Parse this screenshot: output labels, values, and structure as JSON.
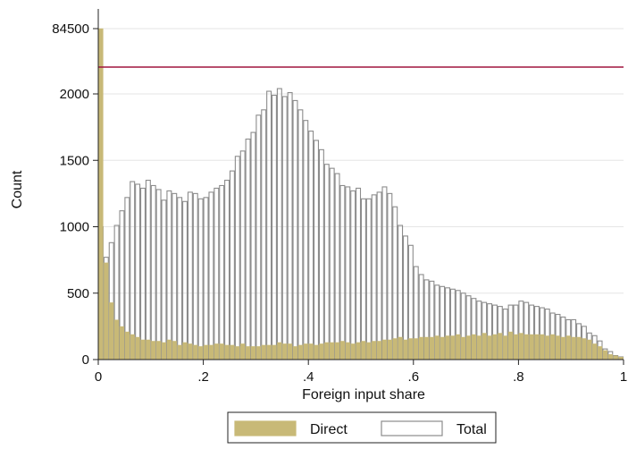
{
  "chart_data": {
    "type": "bar",
    "subtype": "overlaid-histogram",
    "xlabel": "Foreign input share",
    "ylabel": "Count",
    "xlim": [
      0,
      1
    ],
    "x_ticks": [
      {
        "value": 0,
        "label": "0"
      },
      {
        "value": 0.2,
        "label": ".2"
      },
      {
        "value": 0.4,
        "label": ".4"
      },
      {
        "value": 0.6,
        "label": ".6"
      },
      {
        "value": 0.8,
        "label": ".8"
      },
      {
        "value": 1,
        "label": "1"
      }
    ],
    "y_ticks": [
      {
        "value": 0,
        "label": "0"
      },
      {
        "value": 500,
        "label": "500"
      },
      {
        "value": 1000,
        "label": "1000"
      },
      {
        "value": 1500,
        "label": "1500"
      },
      {
        "value": 2000,
        "label": "2000"
      },
      {
        "value": 84500,
        "label": "84500"
      }
    ],
    "axis_break": {
      "line_value": 2200,
      "line_color": "#a0153e"
    },
    "grid": "horizontal",
    "legend_position": "bottom",
    "bin_width": 0.01,
    "series": [
      {
        "name": "Total",
        "style": "outline",
        "color": "#8c8c8c",
        "bin_starts": [
          0.0,
          0.01,
          0.02,
          0.03,
          0.04,
          0.05,
          0.06,
          0.07,
          0.08,
          0.09,
          0.1,
          0.11,
          0.12,
          0.13,
          0.14,
          0.15,
          0.16,
          0.17,
          0.18,
          0.19,
          0.2,
          0.21,
          0.22,
          0.23,
          0.24,
          0.25,
          0.26,
          0.27,
          0.28,
          0.29,
          0.3,
          0.31,
          0.32,
          0.33,
          0.34,
          0.35,
          0.36,
          0.37,
          0.38,
          0.39,
          0.4,
          0.41,
          0.42,
          0.43,
          0.44,
          0.45,
          0.46,
          0.47,
          0.48,
          0.49,
          0.5,
          0.51,
          0.52,
          0.53,
          0.54,
          0.55,
          0.56,
          0.57,
          0.58,
          0.59,
          0.6,
          0.61,
          0.62,
          0.63,
          0.64,
          0.65,
          0.66,
          0.67,
          0.68,
          0.69,
          0.7,
          0.71,
          0.72,
          0.73,
          0.74,
          0.75,
          0.76,
          0.77,
          0.78,
          0.79,
          0.8,
          0.81,
          0.82,
          0.83,
          0.84,
          0.85,
          0.86,
          0.87,
          0.88,
          0.89,
          0.9,
          0.91,
          0.92,
          0.93,
          0.94,
          0.95,
          0.96,
          0.97,
          0.98,
          0.99
        ],
        "values": [
          1000,
          770,
          880,
          1010,
          1120,
          1220,
          1340,
          1320,
          1290,
          1350,
          1310,
          1280,
          1200,
          1270,
          1250,
          1220,
          1190,
          1260,
          1250,
          1210,
          1220,
          1260,
          1290,
          1310,
          1350,
          1420,
          1530,
          1570,
          1660,
          1710,
          1840,
          1880,
          2020,
          1990,
          2040,
          1980,
          2010,
          1950,
          1880,
          1800,
          1720,
          1650,
          1580,
          1470,
          1440,
          1400,
          1310,
          1300,
          1270,
          1290,
          1210,
          1210,
          1240,
          1260,
          1300,
          1250,
          1150,
          1010,
          930,
          860,
          700,
          640,
          600,
          590,
          560,
          550,
          540,
          530,
          520,
          500,
          480,
          460,
          440,
          430,
          420,
          410,
          400,
          380,
          410,
          410,
          440,
          430,
          410,
          400,
          390,
          380,
          350,
          340,
          320,
          300,
          300,
          270,
          250,
          200,
          180,
          140,
          80,
          60,
          30,
          20
        ]
      },
      {
        "name": "Direct",
        "style": "filled",
        "color": "#c8b977",
        "bin_starts": [
          0.0,
          0.01,
          0.02,
          0.03,
          0.04,
          0.05,
          0.06,
          0.07,
          0.08,
          0.09,
          0.1,
          0.11,
          0.12,
          0.13,
          0.14,
          0.15,
          0.16,
          0.17,
          0.18,
          0.19,
          0.2,
          0.21,
          0.22,
          0.23,
          0.24,
          0.25,
          0.26,
          0.27,
          0.28,
          0.29,
          0.3,
          0.31,
          0.32,
          0.33,
          0.34,
          0.35,
          0.36,
          0.37,
          0.38,
          0.39,
          0.4,
          0.41,
          0.42,
          0.43,
          0.44,
          0.45,
          0.46,
          0.47,
          0.48,
          0.49,
          0.5,
          0.51,
          0.52,
          0.53,
          0.54,
          0.55,
          0.56,
          0.57,
          0.58,
          0.59,
          0.6,
          0.61,
          0.62,
          0.63,
          0.64,
          0.65,
          0.66,
          0.67,
          0.68,
          0.69,
          0.7,
          0.71,
          0.72,
          0.73,
          0.74,
          0.75,
          0.76,
          0.77,
          0.78,
          0.79,
          0.8,
          0.81,
          0.82,
          0.83,
          0.84,
          0.85,
          0.86,
          0.87,
          0.88,
          0.89,
          0.9,
          0.91,
          0.92,
          0.93,
          0.94,
          0.95,
          0.96,
          0.97,
          0.98,
          0.99
        ],
        "values": [
          84900,
          730,
          430,
          300,
          250,
          210,
          190,
          170,
          150,
          150,
          140,
          140,
          130,
          150,
          140,
          110,
          130,
          120,
          110,
          100,
          110,
          110,
          120,
          120,
          110,
          110,
          100,
          120,
          100,
          100,
          100,
          110,
          110,
          110,
          130,
          120,
          120,
          100,
          110,
          120,
          120,
          110,
          120,
          130,
          130,
          130,
          140,
          130,
          120,
          130,
          140,
          130,
          140,
          140,
          150,
          150,
          160,
          170,
          150,
          160,
          160,
          170,
          170,
          170,
          180,
          170,
          180,
          180,
          190,
          170,
          180,
          190,
          180,
          200,
          180,
          190,
          200,
          180,
          210,
          190,
          200,
          190,
          190,
          190,
          190,
          180,
          190,
          180,
          170,
          180,
          170,
          170,
          160,
          150,
          120,
          100,
          70,
          40,
          30,
          20
        ]
      }
    ]
  },
  "legend": {
    "items": [
      {
        "label": "Direct",
        "color": "#c8b977",
        "style": "filled"
      },
      {
        "label": "Total",
        "color": "#8c8c8c",
        "style": "outline"
      }
    ]
  }
}
